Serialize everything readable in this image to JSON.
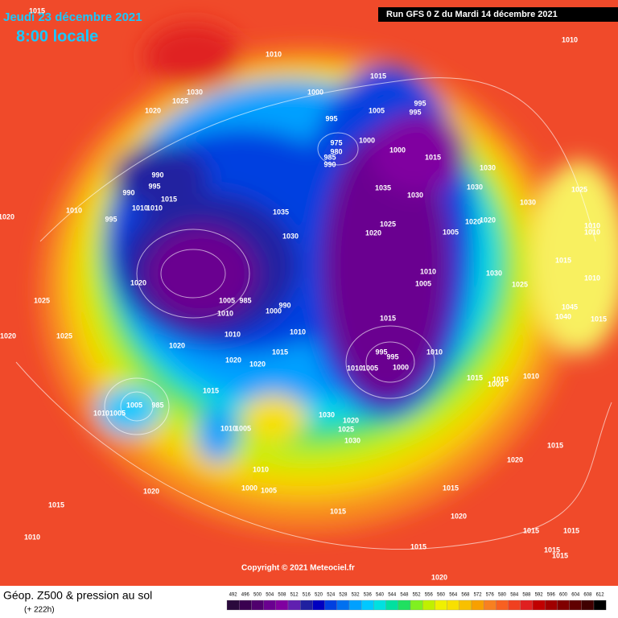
{
  "header": {
    "date": "Jeudi 23 décembre 2021",
    "time": "8:00 locale",
    "run": "Run GFS 0 Z du Mardi 14 décembre 2021"
  },
  "copyright": "Copyright © 2021 Meteociel.fr",
  "footer": {
    "title": "Géop. Z500 & pression au sol",
    "lead": "(+ 222h)"
  },
  "legend": {
    "values": [
      492,
      496,
      500,
      504,
      508,
      512,
      516,
      520,
      524,
      528,
      532,
      536,
      540,
      544,
      548,
      552,
      556,
      560,
      564,
      568,
      572,
      576,
      580,
      584,
      588,
      592,
      596,
      600,
      604,
      608,
      612
    ],
    "colors": [
      "#2a0a3c",
      "#3a0050",
      "#50006e",
      "#6a0090",
      "#8000a0",
      "#6020b0",
      "#2020a0",
      "#0000c0",
      "#0040e0",
      "#0070f0",
      "#00a0ff",
      "#00c8ff",
      "#00e0e0",
      "#00e0a0",
      "#20e060",
      "#80f020",
      "#c0f000",
      "#f0f000",
      "#f8e000",
      "#f8c000",
      "#f8a000",
      "#f88020",
      "#f86020",
      "#f04020",
      "#e02020",
      "#c00000",
      "#a00000",
      "#800000",
      "#600000",
      "#400000",
      "#000000"
    ]
  },
  "map": {
    "labels": [
      "1010",
      "1015",
      "1000",
      "1005",
      "995",
      "995",
      "1030",
      "1025",
      "1020",
      "995",
      "1000",
      "975",
      "980",
      "985",
      "990",
      "1000",
      "1015",
      "990",
      "995",
      "1015",
      "990",
      "1010",
      "1010",
      "995",
      "1010",
      "1035",
      "1035",
      "1030",
      "1030",
      "1030",
      "1025",
      "1030",
      "1020",
      "1020",
      "1025",
      "1020",
      "1005",
      "1030",
      "1010",
      "1010",
      "1015",
      "1010",
      "1030",
      "1025",
      "1020",
      "1010",
      "1005",
      "1025",
      "1005",
      "985",
      "990",
      "1000",
      "1010",
      "1045",
      "1040",
      "1015",
      "1015",
      "1010",
      "1010",
      "1020",
      "1025",
      "1020",
      "1015",
      "995",
      "995",
      "1010",
      "1020",
      "1020",
      "1010",
      "1005",
      "1000",
      "1015",
      "1015",
      "1010",
      "1000",
      "1015",
      "1005",
      "985",
      "1010",
      "1005",
      "1030",
      "1020",
      "1025",
      "1010",
      "1005",
      "1030",
      "1015",
      "1020",
      "1010",
      "1000",
      "1005",
      "1015",
      "1020",
      "1015",
      "1015",
      "1020",
      "1010",
      "1015",
      "1015",
      "1015",
      "1015",
      "1015",
      "1020",
      "1010",
      "1015",
      "1020"
    ]
  }
}
